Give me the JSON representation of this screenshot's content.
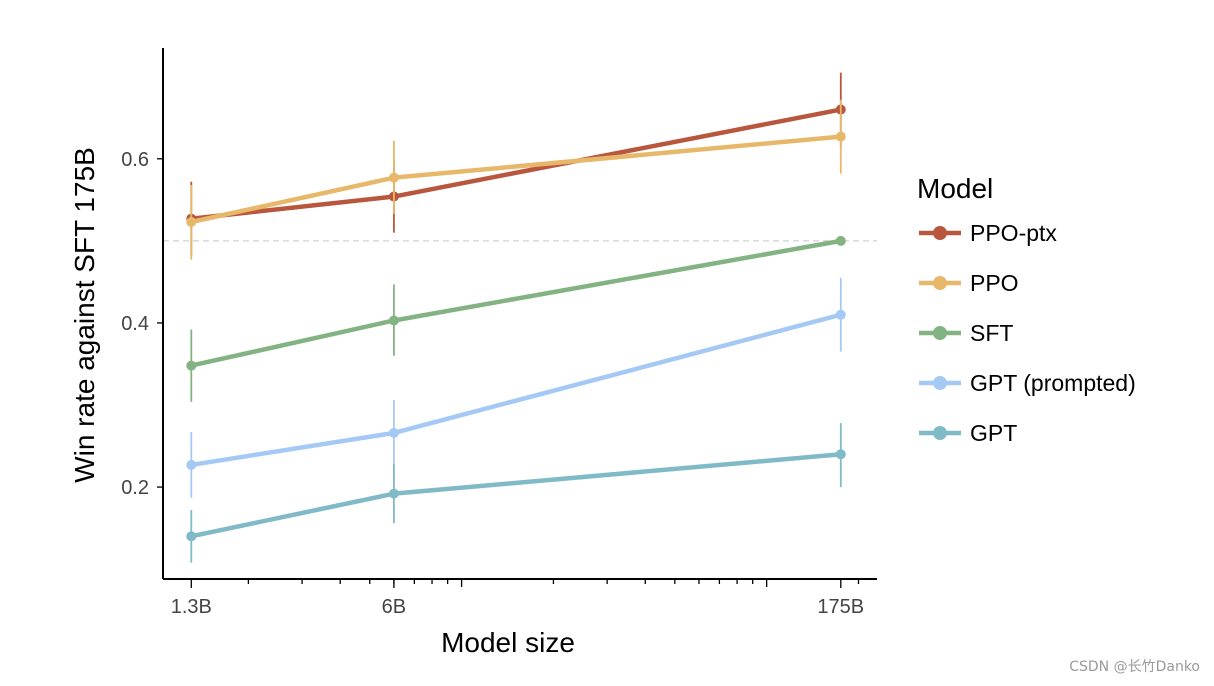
{
  "chart_data": {
    "type": "line",
    "xlabel": "Model size",
    "ylabel": "Win rate against SFT 175B",
    "x_scale": "log",
    "x": [
      "1.3B",
      "6B",
      "175B"
    ],
    "x_values": [
      1.3,
      6,
      175
    ],
    "xlim": [
      1.05,
      230
    ],
    "ylim": [
      0.088,
      0.735
    ],
    "yticks": [
      0.2,
      0.4,
      0.6
    ],
    "ytick_labels": [
      "0.2",
      "0.4",
      "0.6"
    ],
    "reference_line": 0.5,
    "grid": false,
    "legend": {
      "title": "Model",
      "position": "right"
    },
    "series": [
      {
        "name": "PPO-ptx",
        "color": "#b8573e",
        "values": [
          0.527,
          0.554,
          0.66
        ],
        "error_low": [
          0.482,
          0.51,
          0.615
        ],
        "error_high": [
          0.572,
          0.598,
          0.705
        ]
      },
      {
        "name": "PPO",
        "color": "#e8b86a",
        "values": [
          0.523,
          0.577,
          0.627
        ],
        "error_low": [
          0.477,
          0.533,
          0.582
        ],
        "error_high": [
          0.568,
          0.622,
          0.672
        ]
      },
      {
        "name": "SFT",
        "color": "#83b383",
        "values": [
          0.348,
          0.403,
          0.5
        ],
        "error_low": [
          0.304,
          0.36,
          0.5
        ],
        "error_high": [
          0.392,
          0.447,
          0.5
        ]
      },
      {
        "name": "GPT (prompted)",
        "color": "#a5c9f5",
        "values": [
          0.227,
          0.266,
          0.41
        ],
        "error_low": [
          0.187,
          0.226,
          0.365
        ],
        "error_high": [
          0.267,
          0.306,
          0.455
        ]
      },
      {
        "name": "GPT",
        "color": "#7fbac6",
        "values": [
          0.14,
          0.192,
          0.24
        ],
        "error_low": [
          0.108,
          0.156,
          0.2
        ],
        "error_high": [
          0.172,
          0.228,
          0.278
        ]
      }
    ]
  },
  "watermark": "CSDN @长竹Danko"
}
